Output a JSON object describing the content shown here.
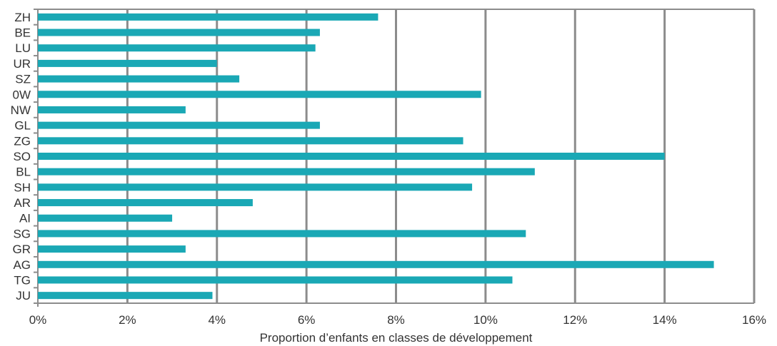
{
  "chart_data": {
    "type": "bar",
    "orientation": "horizontal",
    "categories": [
      "ZH",
      "BE",
      "LU",
      "UR",
      "SZ",
      "0W",
      "NW",
      "GL",
      "ZG",
      "SO",
      "BL",
      "SH",
      "AR",
      "AI",
      "SG",
      "GR",
      "AG",
      "TG",
      "JU"
    ],
    "values": [
      7.6,
      6.3,
      6.2,
      4.0,
      4.5,
      9.9,
      3.3,
      6.3,
      9.5,
      14.0,
      11.1,
      9.7,
      4.8,
      3.0,
      10.9,
      3.3,
      15.1,
      10.6,
      3.9
    ],
    "xlabel": "Proportion d’enfants en classes de développement",
    "ylabel": "",
    "xlim": [
      0,
      16
    ],
    "x_ticks": [
      {
        "value": 0,
        "label": "0%"
      },
      {
        "value": 2,
        "label": "2%"
      },
      {
        "value": 4,
        "label": "4%"
      },
      {
        "value": 6,
        "label": "6%"
      },
      {
        "value": 8,
        "label": "8%"
      },
      {
        "value": 10,
        "label": "10%"
      },
      {
        "value": 12,
        "label": "12%"
      },
      {
        "value": 14,
        "label": "14%"
      },
      {
        "value": 16,
        "label": "16%"
      }
    ],
    "grid": true,
    "legend": "none",
    "bar_color": "#1aa8b5",
    "grid_color": "#8c8c8c"
  }
}
